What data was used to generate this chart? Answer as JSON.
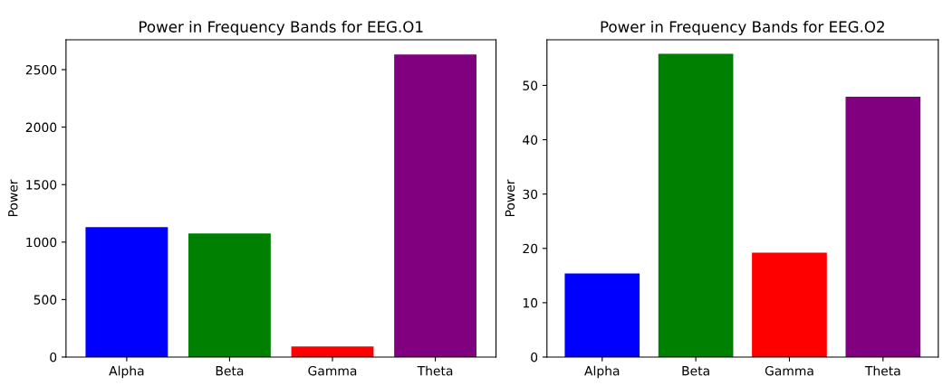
{
  "chart_data": [
    {
      "type": "bar",
      "title": "Power in Frequency Bands for EEG.O1",
      "ylabel": "Power",
      "categories": [
        "Alpha",
        "Beta",
        "Gamma",
        "Theta"
      ],
      "values": [
        1130,
        1076,
        93,
        2632
      ],
      "colors": [
        "#0000ff",
        "#008000",
        "#ff0000",
        "#800080"
      ],
      "ylim": [
        0,
        2760
      ],
      "yticks": [
        0,
        500,
        1000,
        1500,
        2000,
        2500
      ],
      "grid": false,
      "legend": false
    },
    {
      "type": "bar",
      "title": "Power in Frequency Bands for EEG.O2",
      "ylabel": "Power",
      "categories": [
        "Alpha",
        "Beta",
        "Gamma",
        "Theta"
      ],
      "values": [
        15.4,
        55.8,
        19.2,
        47.9
      ],
      "colors": [
        "#0000ff",
        "#008000",
        "#ff0000",
        "#800080"
      ],
      "ylim": [
        0,
        58.4
      ],
      "yticks": [
        0,
        10,
        20,
        30,
        40,
        50
      ],
      "grid": false,
      "legend": false
    }
  ]
}
